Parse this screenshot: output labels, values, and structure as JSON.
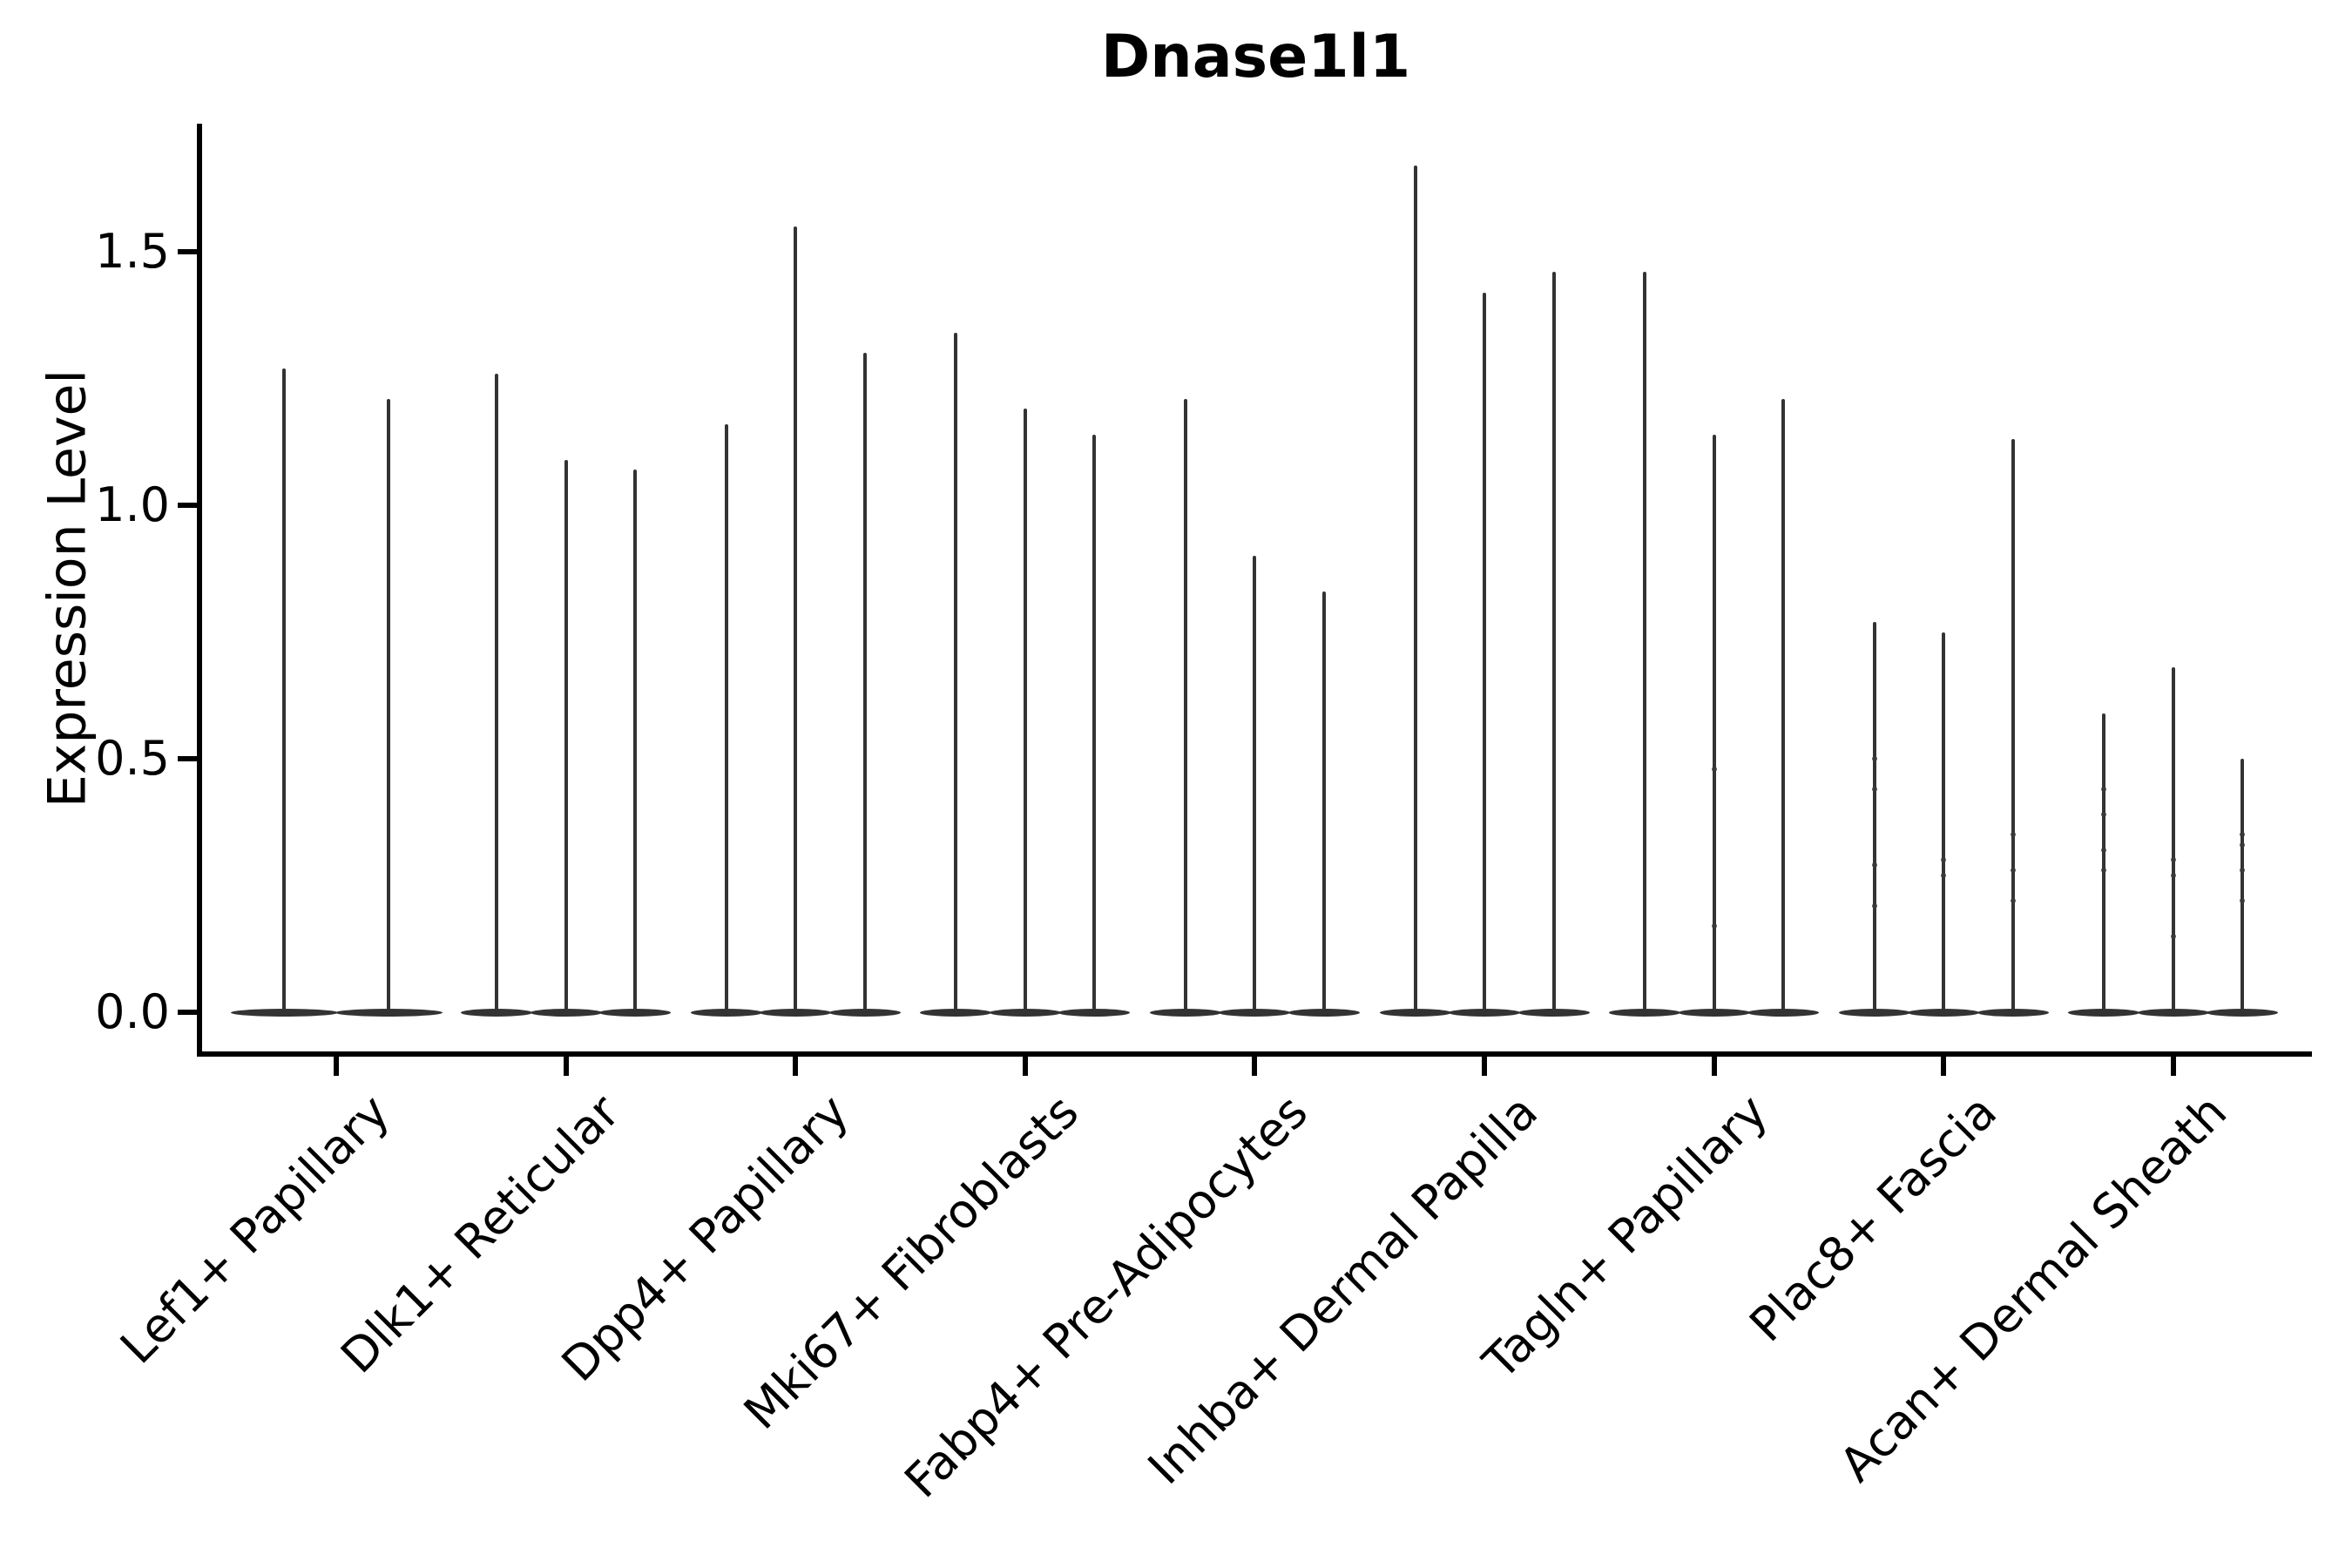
{
  "title": "Dnase1l1",
  "ylabel": "Expression Level",
  "chart_data": {
    "type": "violin",
    "title": "Dnase1l1",
    "xlabel": "",
    "ylabel": "Expression Level",
    "ylim": [
      -0.08,
      1.75
    ],
    "yticks": [
      "0.0",
      "0.5",
      "1.0",
      "1.5"
    ],
    "ytick_values": [
      0.0,
      0.5,
      1.0,
      1.5
    ],
    "grid": false,
    "legend": null,
    "violin_color": "#333333",
    "categories": [
      "Lef1+ Papillary",
      "Dlk1+ Reticular",
      "Dpp4+ Papillary",
      "Mki67+ Fibroblasts",
      "Fabp4+ Pre-Adipocytes",
      "Inhba+ Dermal Papilla",
      "Tagln+ Papillary",
      "Plac8+ Fascia",
      "Acan+ Dermal Sheath"
    ],
    "series": [
      {
        "category": "Lef1+ Papillary",
        "peaks": [
          1.27,
          1.21
        ],
        "dots": [
          [],
          []
        ]
      },
      {
        "category": "Dlk1+ Reticular",
        "peaks": [
          1.26,
          1.09,
          1.07
        ],
        "dots": [
          [],
          [],
          []
        ]
      },
      {
        "category": "Dpp4+ Papillary",
        "peaks": [
          1.16,
          1.55,
          1.3
        ],
        "dots": [
          [],
          [],
          []
        ]
      },
      {
        "category": "Mki67+ Fibroblasts",
        "peaks": [
          1.34,
          1.19,
          1.14
        ],
        "dots": [
          [],
          [],
          []
        ]
      },
      {
        "category": "Fabp4+ Pre-Adipocytes",
        "peaks": [
          1.21,
          0.9,
          0.83
        ],
        "dots": [
          [],
          [],
          []
        ]
      },
      {
        "category": "Inhba+ Dermal Papilla",
        "peaks": [
          1.67,
          1.42,
          1.46
        ],
        "dots": [
          [],
          [],
          []
        ]
      },
      {
        "category": "Tagln+ Papillary",
        "peaks": [
          1.46,
          1.14,
          1.21
        ],
        "dots": [
          [],
          [
            0.48,
            0.17
          ],
          []
        ]
      },
      {
        "category": "Plac8+ Fascia",
        "peaks": [
          0.77,
          0.75,
          1.13
        ],
        "dots": [
          [
            0.5,
            0.44,
            0.29,
            0.21
          ],
          [
            0.3,
            0.27
          ],
          [
            0.35,
            0.28,
            0.22
          ]
        ]
      },
      {
        "category": "Acan+ Dermal Sheath",
        "peaks": [
          0.59,
          0.68,
          0.5
        ],
        "dots": [
          [
            0.44,
            0.39,
            0.32,
            0.28
          ],
          [
            0.3,
            0.27,
            0.15
          ],
          [
            0.35,
            0.33,
            0.28,
            0.22
          ]
        ]
      }
    ]
  }
}
